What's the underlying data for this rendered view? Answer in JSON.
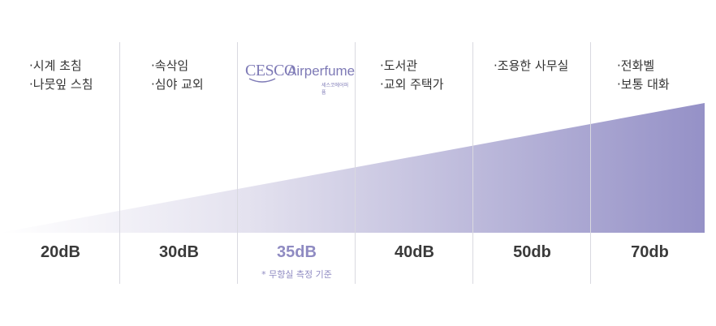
{
  "columns": [
    {
      "db": "20dB",
      "examples": [
        "·시계 초침",
        "·나뭇잎 스침"
      ]
    },
    {
      "db": "30dB",
      "examples": [
        "·속삭임",
        "·심야 교외"
      ]
    },
    {
      "db": "35dB",
      "logo": {
        "brand": "CESCO",
        "product": "Airperfume",
        "sub": "세스코에어퍼퓸"
      },
      "note": "* 무향실 측정 기준"
    },
    {
      "db": "40dB",
      "examples": [
        "·도서관",
        "·교외 주택가"
      ]
    },
    {
      "db": "50db",
      "examples": [
        "·조용한 사무실"
      ]
    },
    {
      "db": "70db",
      "examples": [
        "·전화벨",
        "·보통 대화"
      ]
    }
  ],
  "colors": {
    "accent": "#8f8bc2",
    "gradient_start": "#ffffff",
    "gradient_end": "#9591c7"
  }
}
